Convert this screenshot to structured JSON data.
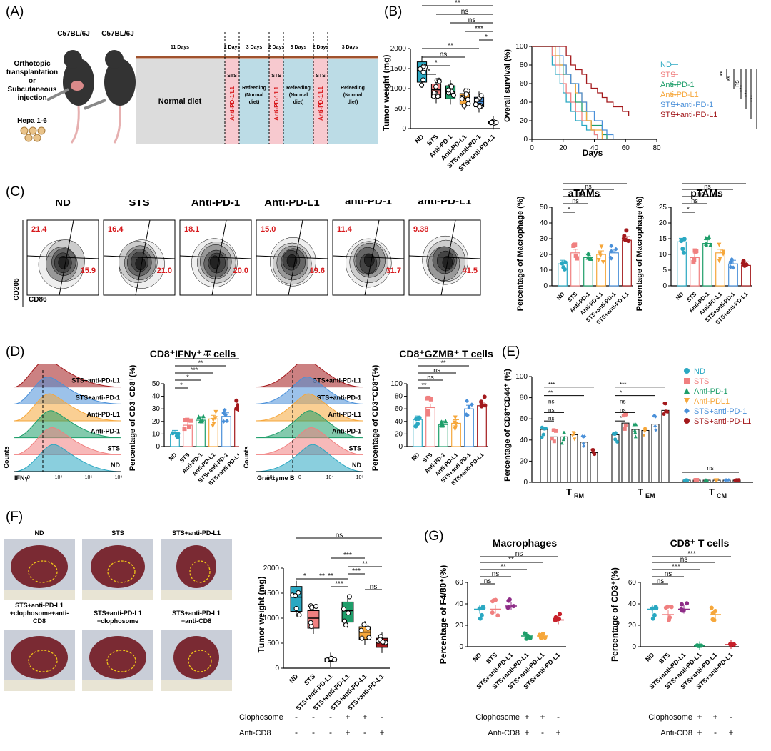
{
  "panel_labels": {
    "A": "(A)",
    "B": "(B)",
    "C": "(C)",
    "D": "(D)",
    "E": "(E)",
    "F": "(F)",
    "G": "(G)"
  },
  "colors": {
    "ND": "#2aa8c2",
    "STS": "#f08080",
    "AntiPD1": "#1e9e6a",
    "AntiPDL1": "#f6a73b",
    "STSPD1": "#4a90d9",
    "STSPDL1": "#a3191c",
    "grey": "#d9d9d9",
    "pink": "#f7c9cf",
    "blue": "#bcdce6"
  },
  "panelA": {
    "mouse1": "C57BL/6J",
    "mouse2": "C57BL/6J",
    "route": [
      "Orthotopic",
      "transplantation",
      "or",
      "Subcutaneous",
      "injection"
    ],
    "cells": "Hepa 1-6",
    "durations": [
      "11 Days",
      "2 Days",
      "3 Days",
      "2 Days",
      "3 Days",
      "2 Days",
      "3 Days"
    ],
    "normal": "Normal diet",
    "sts": "STS",
    "drug": "Anti-PD-1/L1",
    "refeed": [
      "Refeeding",
      "(Normal",
      "diet)"
    ]
  },
  "panelB_bar": {
    "ylabel": "Tumor weight (mg)",
    "yticks": [
      "0",
      "500",
      "1000",
      "1500",
      "2000"
    ],
    "categories": [
      "ND",
      "STS",
      "Anti-PD-1",
      "Anti-PD-L1",
      "STS+anti-PD-1",
      "STS+anti-PD-L1"
    ],
    "sig": [
      "**",
      "ns",
      "ns",
      "***",
      "*",
      "**",
      "ns",
      "*"
    ]
  },
  "panelB_surv": {
    "ylabel": "Overall survival (%)",
    "xlabel": "Days",
    "xticks": [
      "0",
      "20",
      "40",
      "60",
      "80"
    ],
    "yticks": [
      "0",
      "20",
      "40",
      "60",
      "80",
      "100"
    ],
    "legend": [
      "ND",
      "STS",
      "Anti-PD-1",
      "Anti-PD-L1",
      "STS+anti-PD-1",
      "STS+anti-PD-L1"
    ],
    "sig": [
      "**",
      "**",
      "ns",
      "***",
      "***",
      "ns",
      "*",
      "**",
      "ns",
      "***"
    ]
  },
  "panelC": {
    "groups": [
      "ND",
      "STS",
      "Anti-PD-1",
      "Anti-PD-L1",
      "STS+\nanti-PD-1",
      "STS+\nanti-PD-L1"
    ],
    "top": [
      "21.4",
      "16.4",
      "18.1",
      "15.0",
      "11.4",
      "9.38"
    ],
    "bottom": [
      "15.9",
      "21.0",
      "20.0",
      "19.6",
      "31.7",
      "41.5"
    ],
    "yaxis": "CD206",
    "xaxis": "CD86",
    "aTAM_title": "aTAMs",
    "pTAM_title": "pTAMs",
    "ylabel": "Percentage of Macrophage (%)",
    "aTAM_yticks": [
      "0",
      "10",
      "20",
      "30",
      "40",
      "50"
    ],
    "pTAM_yticks": [
      "0",
      "5",
      "10",
      "15",
      "20",
      "25"
    ],
    "cats": [
      "ND",
      "STS",
      "Anti-PD-1",
      "Anti-PD-L1",
      "STS+anti-PD-1",
      "STS+anti-PD-L1"
    ],
    "sig": [
      "*",
      "ns",
      "ns",
      "ns",
      "**"
    ]
  },
  "panelD": {
    "hist1_labels": [
      "STS+anti-PD-L1",
      "STS+anti-PD-1",
      "Anti-PD-L1",
      "Anti-PD-1",
      "STS",
      "ND"
    ],
    "counts": "Counts",
    "ifng": "IFNγ",
    "gzmb": "Granzyme B",
    "ifn_title": "CD8⁺IFNγ⁺ T cells",
    "gzmb_title": "CD8⁺GZMB⁺ T cells",
    "ifn_ylabel": "Percentage of CD3⁺CD8⁺(%)",
    "ifn_yticks": [
      "0",
      "10",
      "20",
      "30",
      "40",
      "50"
    ],
    "gz_yticks": [
      "0",
      "20",
      "40",
      "60",
      "80",
      "100"
    ],
    "cats": [
      "ND",
      "STS",
      "Anti-PD-1",
      "Anti-PD-L1",
      "STS+anti-PD-1",
      "STS+anti-PD-L1"
    ],
    "ifn_sig": [
      "*",
      "*",
      "***",
      "**",
      "***"
    ],
    "gz_sig": [
      "**",
      "ns",
      "ns",
      "**",
      "**"
    ],
    "x1ticks": [
      "0",
      "10⁴",
      "10⁶",
      "10⁸"
    ],
    "x2ticks": [
      "-10⁴",
      "0",
      "10⁴",
      "10⁵"
    ]
  },
  "panelE": {
    "ylabel": "Percentage of CD8⁺CD44⁺ (%)",
    "yticks": [
      "0",
      "20",
      "40",
      "60",
      "80",
      "100"
    ],
    "groups": [
      "T",
      "T",
      "T"
    ],
    "subs": [
      "RM",
      "EM",
      "CM"
    ],
    "legend": [
      "ND",
      "STS",
      "Anti-PD-1",
      "Anti-PDL1",
      "STS+anti-PD-1",
      "STS+anti-PD-L1"
    ],
    "sigRM": [
      "ns",
      "ns",
      "ns",
      "**",
      "***"
    ],
    "sigEM": [
      "*",
      "ns",
      "ns",
      "*",
      "***"
    ],
    "sigCM": "ns"
  },
  "panelF": {
    "photo_labels": [
      "ND",
      "STS",
      "STS+anti-PD-L1",
      "STS+anti-PD-L1\n+clophosome+anti-\nCD8",
      "STS+anti-PD-L1\n+clophosome",
      "STS+anti-PD-L1\n+anti-CD8"
    ],
    "ylabel": "Tumor weight (mg)",
    "yticks": [
      "0",
      "500",
      "1000",
      "1500",
      "2000"
    ],
    "cats": [
      "ND",
      "STS",
      "STS+anti-PD-L1",
      "STS+anti-PD-L1",
      "STS+anti-PD-L1",
      "STS+anti-PD-L1"
    ],
    "sig": [
      "ns",
      "***",
      "**",
      "***",
      "**",
      "*",
      "***",
      "**",
      "ns"
    ],
    "clo_label": "Clophosome",
    "cd8_label": "Anti-CD8",
    "clo": [
      "-",
      "-",
      "-",
      "+",
      "+",
      "-"
    ],
    "cd8": [
      "-",
      "-",
      "-",
      "+",
      "-",
      "+"
    ]
  },
  "panelG": {
    "mac_title": "Macrophages",
    "cd8_title": "CD8⁺ T cells",
    "mac_ylabel": "Percentage of F4/80⁺(%)",
    "cd8_ylabel": "Percentage of CD3⁺(%)",
    "yticks": [
      "0",
      "20",
      "40",
      "60"
    ],
    "cats": [
      "ND",
      "STS",
      "STS+anti-PD-L1",
      "STS+anti-PD-L1",
      "STS+anti-PD-L1",
      "STS+anti-PD-L1"
    ],
    "mac_sig": [
      "ns",
      "ns",
      "**",
      "**",
      "ns"
    ],
    "cd8_sig": [
      "ns",
      "ns",
      "***",
      "ns",
      "***"
    ],
    "clo_label": "Clophosome",
    "cd8_label": "Anti-CD8",
    "clo": [
      "-",
      "-",
      "-",
      "+",
      "+",
      "-"
    ],
    "cd8": [
      "-",
      "-",
      "-",
      "+",
      "-",
      "+"
    ]
  },
  "chart_data": [
    {
      "type": "bar",
      "id": "B_tumor",
      "ylim": [
        0,
        2000
      ],
      "categories": [
        "ND",
        "STS",
        "Anti-PD-1",
        "Anti-PD-L1",
        "STS+anti-PD-1",
        "STS+anti-PD-L1"
      ],
      "values": [
        1450,
        970,
        930,
        760,
        680,
        150
      ]
    },
    {
      "type": "line",
      "id": "B_survival",
      "xlim": [
        0,
        80
      ],
      "ylim": [
        0,
        100
      ],
      "series": [
        {
          "name": "ND",
          "x": [
            0,
            13,
            15,
            18,
            20,
            22,
            25,
            28,
            30,
            32,
            35,
            38,
            40,
            42
          ],
          "y": [
            100,
            80,
            70,
            60,
            50,
            40,
            30,
            20,
            20,
            15,
            10,
            10,
            5,
            0
          ]
        },
        {
          "name": "STS",
          "x": [
            0,
            13,
            15,
            18,
            20,
            22,
            25,
            28,
            32,
            38,
            40,
            42
          ],
          "y": [
            100,
            90,
            80,
            70,
            60,
            50,
            40,
            30,
            20,
            10,
            5,
            0
          ]
        },
        {
          "name": "Anti-PD-1",
          "x": [
            0,
            15,
            18,
            20,
            25,
            28,
            32,
            35,
            38,
            45,
            48
          ],
          "y": [
            100,
            90,
            80,
            70,
            60,
            40,
            30,
            20,
            15,
            5,
            0
          ]
        },
        {
          "name": "Anti-PD-L1",
          "x": [
            0,
            15,
            18,
            22,
            25,
            28,
            32,
            35,
            38,
            45
          ],
          "y": [
            100,
            90,
            80,
            70,
            60,
            50,
            40,
            20,
            10,
            0
          ]
        },
        {
          "name": "STS+anti-PD-1",
          "x": [
            0,
            18,
            20,
            22,
            25,
            30,
            32,
            35,
            40,
            45,
            48,
            52
          ],
          "y": [
            100,
            90,
            80,
            70,
            60,
            50,
            40,
            30,
            20,
            10,
            5,
            0
          ]
        },
        {
          "name": "STS+anti-PD-L1",
          "x": [
            0,
            22,
            25,
            28,
            32,
            35,
            38,
            42,
            45,
            48,
            52,
            58,
            62
          ],
          "y": [
            100,
            90,
            80,
            75,
            70,
            60,
            55,
            50,
            45,
            40,
            35,
            30,
            25
          ]
        }
      ]
    },
    {
      "type": "bar",
      "id": "C_aTAM",
      "ylim": [
        0,
        50
      ],
      "values": [
        14,
        21,
        18,
        20,
        21,
        29
      ]
    },
    {
      "type": "bar",
      "id": "C_pTAM",
      "ylim": [
        0,
        25
      ],
      "values": [
        14,
        9,
        13.5,
        10.5,
        7,
        6.5
      ]
    },
    {
      "type": "bar",
      "id": "D_IFN",
      "ylim": [
        0,
        50
      ],
      "values": [
        10,
        17,
        21,
        22,
        24,
        30
      ]
    },
    {
      "type": "bar",
      "id": "D_GZMB",
      "ylim": [
        0,
        100
      ],
      "values": [
        43,
        62,
        35,
        37,
        60,
        65
      ]
    },
    {
      "type": "bar",
      "id": "E",
      "ylim": [
        0,
        100
      ],
      "categories": [
        "TRM",
        "TEM",
        "TCM"
      ],
      "series": [
        {
          "name": "ND",
          "values": [
            50,
            45,
            2
          ]
        },
        {
          "name": "STS",
          "values": [
            43,
            56,
            2
          ]
        },
        {
          "name": "Anti-PD-1",
          "values": [
            43,
            50,
            2
          ]
        },
        {
          "name": "Anti-PDL1",
          "values": [
            45,
            49,
            2
          ]
        },
        {
          "name": "STS+anti-PD-1",
          "values": [
            38,
            55,
            2
          ]
        },
        {
          "name": "STS+anti-PD-L1",
          "values": [
            28,
            68,
            2
          ]
        }
      ]
    },
    {
      "type": "bar",
      "id": "F_tumor",
      "ylim": [
        0,
        2000
      ],
      "values": [
        1420,
        1000,
        170,
        1150,
        720,
        520
      ]
    },
    {
      "type": "scatter",
      "id": "G_mac",
      "ylim": [
        0,
        60
      ],
      "values": [
        35,
        35,
        38,
        10,
        10,
        25
      ]
    },
    {
      "type": "scatter",
      "id": "G_cd8",
      "ylim": [
        0,
        60
      ],
      "values": [
        35,
        30,
        35,
        1,
        30,
        2
      ]
    }
  ]
}
